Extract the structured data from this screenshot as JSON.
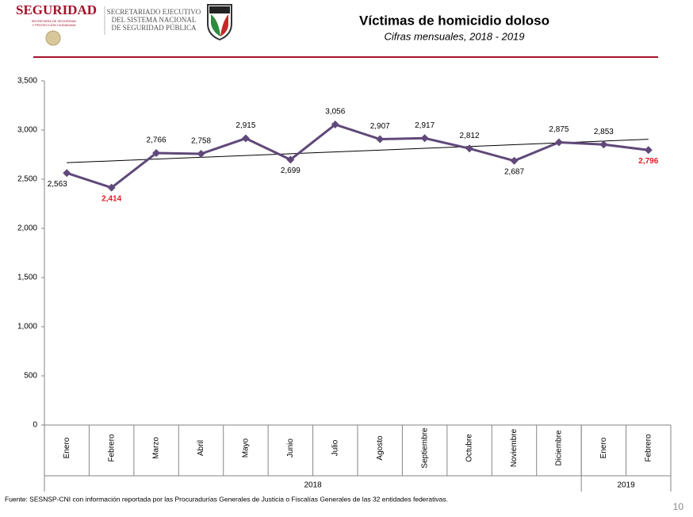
{
  "header": {
    "org": "SEGURIDAD",
    "org_sub": [
      "SECRETARÍA DE SEGURIDAD",
      "Y PROTECCIÓN CIUDADANA"
    ],
    "secretariado": [
      "SECRETARIADO EJECUTIVO",
      "DEL SISTEMA NACIONAL",
      "DE SEGURIDAD PÚBLICA"
    ]
  },
  "chart_data": {
    "type": "line",
    "title": "Víctimas de homicidio doloso",
    "subtitle": "Cifras mensuales, 2018 - 2019",
    "categories": [
      "Enero",
      "Febrero",
      "Marzo",
      "Abril",
      "Mayo",
      "Junio",
      "Julio",
      "Agosto",
      "Septiembre",
      "Octubre",
      "Noviembre",
      "Diciembre",
      "Enero",
      "Febrero"
    ],
    "groups": [
      {
        "label": "2018",
        "span": 12
      },
      {
        "label": "2019",
        "span": 2
      }
    ],
    "values": [
      2563,
      2414,
      2766,
      2758,
      2915,
      2699,
      3056,
      2907,
      2917,
      2812,
      2687,
      2875,
      2853,
      2796
    ],
    "value_labels": [
      "2,563",
      "2,414",
      "2,766",
      "2,758",
      "2,915",
      "2,699",
      "3,056",
      "2,907",
      "2,917",
      "2,812",
      "2,687",
      "2,875",
      "2,853",
      "2,796"
    ],
    "value_label_colors": [
      "#000000",
      "#e31e24",
      "#000000",
      "#000000",
      "#000000",
      "#000000",
      "#000000",
      "#000000",
      "#000000",
      "#000000",
      "#000000",
      "#000000",
      "#000000",
      "#e31e24"
    ],
    "color": "#60497a",
    "trendline": true,
    "ylim": [
      0,
      3500
    ],
    "yticks": [
      0,
      500,
      {
        "value": 1000,
        "label": "1,000"
      },
      {
        "value": 1500,
        "label": "1,500"
      },
      {
        "value": 2000,
        "label": "2,000"
      },
      {
        "value": 2500,
        "label": "2,500"
      },
      {
        "value": 3000,
        "label": "3,000"
      },
      {
        "value": 3500,
        "label": "3,500"
      }
    ],
    "source": "Fuente: SESNSP-CNI con información reportada por las Procuradurías Generales de Justicia o Fiscalías Generales de las 32 entidades federativas."
  },
  "page_number": "10"
}
